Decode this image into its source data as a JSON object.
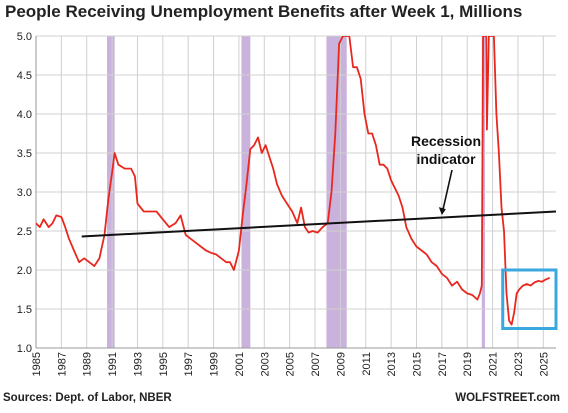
{
  "title": "People Receiving Unemployment Benefits after Week 1, Millions",
  "source": "Sources: Dept. of Labor, NBER",
  "credit": "WOLFSTREET.com",
  "colors": {
    "line": "#e8281e",
    "trend": "#111111",
    "recession": "#c9b3dd",
    "highlight": "#3aa7df",
    "grid": "#d0d0d0"
  },
  "chart_data": {
    "type": "line",
    "title": "People Receiving Unemployment Benefits after Week 1, Millions",
    "xlabel": "",
    "ylabel": "",
    "xlim": [
      1985,
      2026
    ],
    "ylim": [
      1.0,
      5.0
    ],
    "x_ticks": [
      "1985",
      "1987",
      "1989",
      "1991",
      "1993",
      "1995",
      "1997",
      "1999",
      "2001",
      "2003",
      "2005",
      "2007",
      "2009",
      "2011",
      "2013",
      "2015",
      "2017",
      "2019",
      "2021",
      "2023",
      "2025"
    ],
    "y_ticks": [
      "1.0",
      "1.5",
      "2.0",
      "2.5",
      "3.0",
      "3.5",
      "4.0",
      "4.5",
      "5.0"
    ],
    "grid": true,
    "recessions": [
      [
        1990.6,
        1991.2
      ],
      [
        2001.2,
        2001.9
      ],
      [
        2007.9,
        2009.5
      ],
      [
        2020.15,
        2020.4
      ]
    ],
    "annotation": {
      "text": [
        "Recession",
        "indicator"
      ],
      "points_to": [
        2017.0,
        2.69
      ]
    },
    "highlight_box": {
      "x": [
        2021.8,
        2026.0
      ],
      "y": [
        1.25,
        2.0
      ]
    },
    "series": [
      {
        "x": [
          1985.0,
          1985.3,
          1985.6,
          1986.0,
          1986.3,
          1986.6,
          1987.0,
          1987.3,
          1987.6,
          1988.0,
          1988.4,
          1988.8,
          1989.2,
          1989.6,
          1990.0,
          1990.4,
          1990.7,
          1991.0,
          1991.2,
          1991.5,
          1992.0,
          1992.5,
          1992.8,
          1993.0,
          1993.5,
          1994.0,
          1994.5,
          1995.0,
          1995.5,
          1996.0,
          1996.4,
          1996.8,
          1997.2,
          1997.6,
          1998.0,
          1998.4,
          1998.8,
          1999.2,
          1999.6,
          2000.0,
          2000.3,
          2000.6,
          2001.0,
          2001.3,
          2001.6,
          2001.9,
          2002.2,
          2002.5,
          2002.8,
          2003.1,
          2003.4,
          2003.7,
          2004.0,
          2004.4,
          2004.8,
          2005.2,
          2005.6,
          2005.9,
          2006.2,
          2006.5,
          2006.8,
          2007.2,
          2007.6,
          2008.0,
          2008.3,
          2008.6,
          2008.9,
          2009.2,
          2009.5,
          2009.7,
          2010.0,
          2010.3,
          2010.6,
          2010.9,
          2011.2,
          2011.5,
          2011.8,
          2012.1,
          2012.4,
          2012.7,
          2013.0,
          2013.3,
          2013.6,
          2013.9,
          2014.2,
          2014.6,
          2015.0,
          2015.4,
          2015.8,
          2016.2,
          2016.6,
          2017.0,
          2017.4,
          2017.8,
          2018.2,
          2018.6,
          2019.0,
          2019.4,
          2019.8,
          2020.0,
          2020.15,
          2020.25,
          2020.32,
          2020.4,
          2020.5,
          2020.55,
          2020.7,
          2020.9,
          2021.1,
          2021.3,
          2021.5,
          2021.7,
          2021.9,
          2022.1,
          2022.3,
          2022.5,
          2022.7,
          2022.9,
          2023.1,
          2023.4,
          2023.7,
          2024.0,
          2024.3,
          2024.6,
          2024.9,
          2025.2,
          2025.5
        ],
        "values": [
          2.6,
          2.55,
          2.65,
          2.55,
          2.6,
          2.7,
          2.68,
          2.55,
          2.4,
          2.25,
          2.1,
          2.15,
          2.1,
          2.05,
          2.15,
          2.45,
          2.9,
          3.25,
          3.5,
          3.35,
          3.3,
          3.3,
          3.2,
          2.85,
          2.75,
          2.75,
          2.75,
          2.65,
          2.55,
          2.6,
          2.7,
          2.45,
          2.4,
          2.35,
          2.3,
          2.25,
          2.22,
          2.2,
          2.15,
          2.1,
          2.1,
          2.0,
          2.25,
          2.7,
          3.1,
          3.55,
          3.6,
          3.7,
          3.5,
          3.6,
          3.45,
          3.3,
          3.1,
          2.95,
          2.85,
          2.75,
          2.6,
          2.8,
          2.55,
          2.48,
          2.5,
          2.48,
          2.55,
          2.6,
          3.0,
          3.75,
          4.9,
          5.0,
          5.0,
          5.0,
          4.6,
          4.6,
          4.45,
          4.0,
          3.75,
          3.75,
          3.6,
          3.35,
          3.35,
          3.3,
          3.15,
          3.05,
          2.95,
          2.8,
          2.55,
          2.4,
          2.3,
          2.25,
          2.2,
          2.1,
          2.05,
          1.95,
          1.9,
          1.8,
          1.85,
          1.75,
          1.7,
          1.68,
          1.62,
          1.7,
          1.8,
          5.0,
          5.0,
          5.0,
          5.0,
          3.8,
          5.0,
          5.0,
          5.0,
          4.0,
          3.5,
          2.8,
          2.5,
          1.7,
          1.35,
          1.3,
          1.45,
          1.7,
          1.75,
          1.8,
          1.82,
          1.8,
          1.84,
          1.86,
          1.85,
          1.88,
          1.9
        ]
      },
      {
        "x": [
          1988.6,
          2026.0
        ],
        "values": [
          2.43,
          2.75
        ]
      }
    ]
  }
}
